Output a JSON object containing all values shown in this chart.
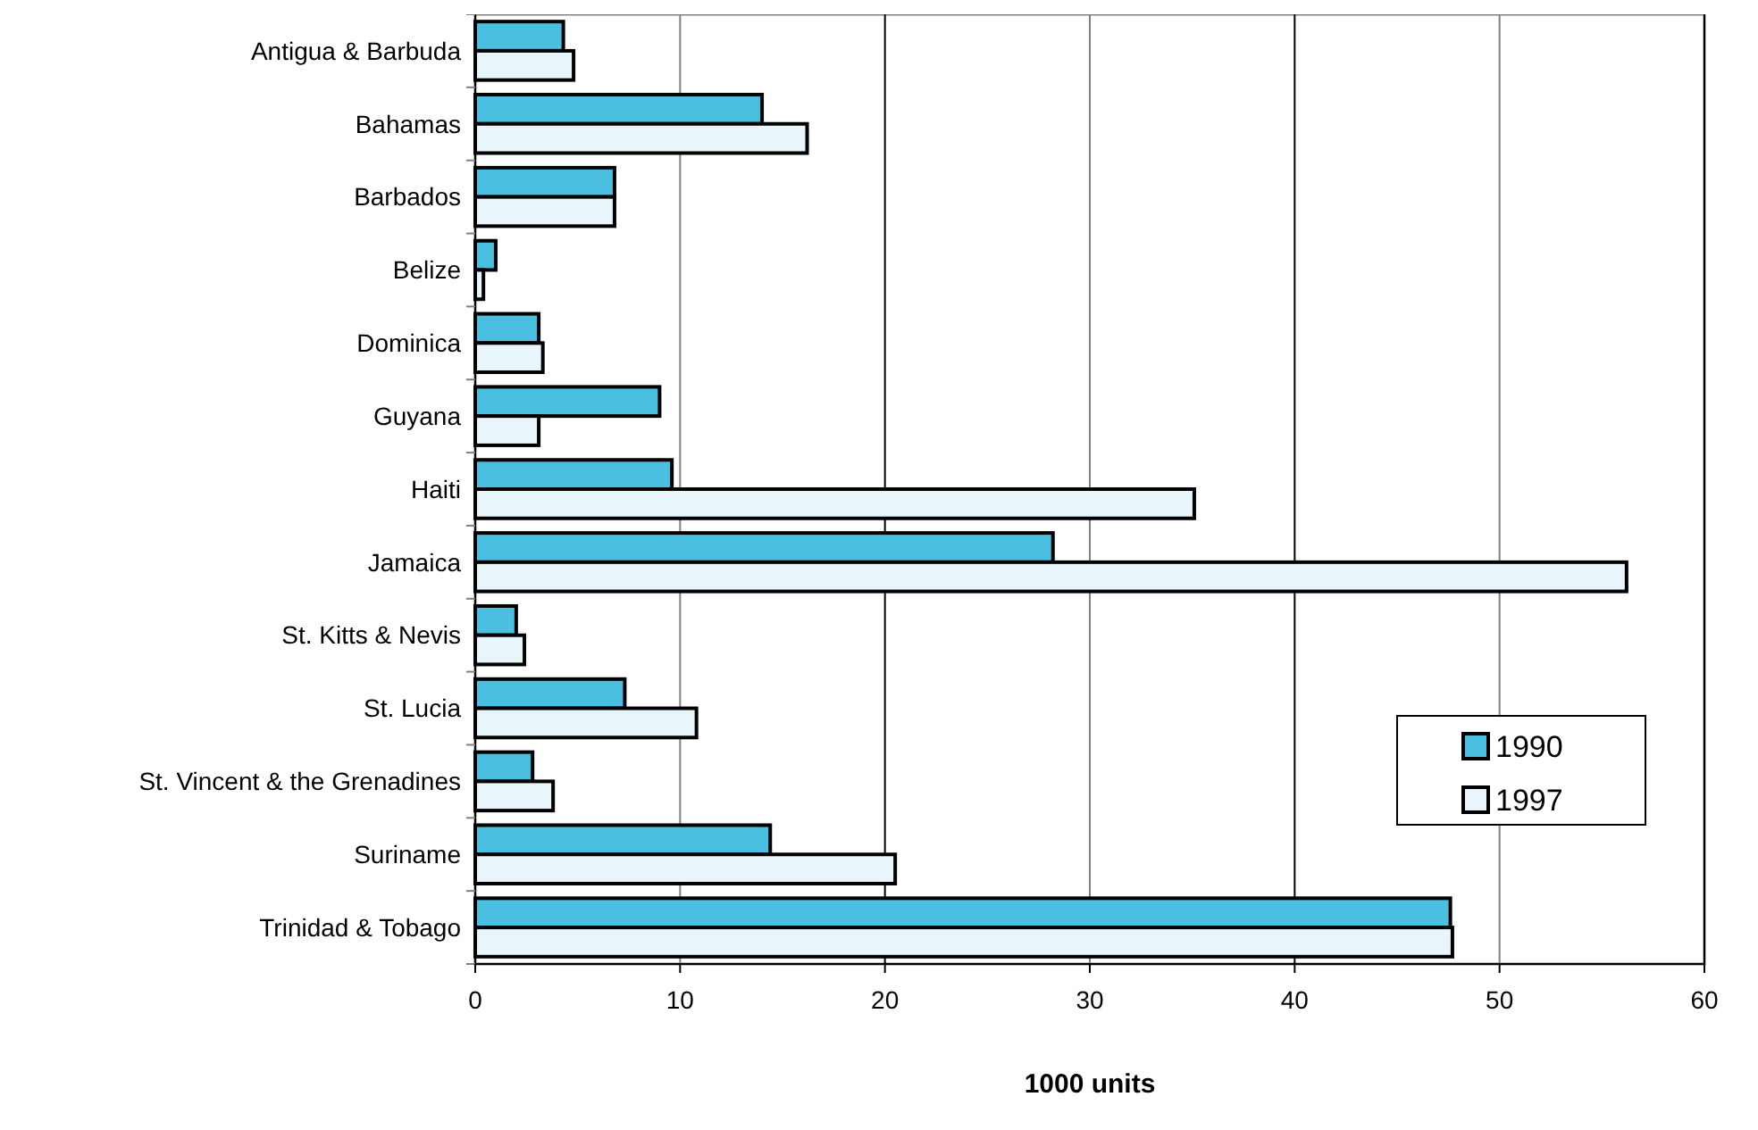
{
  "chart_data": {
    "type": "bar",
    "orientation": "horizontal",
    "xlabel": "1000 units",
    "categories": [
      "Antigua & Barbuda",
      "Bahamas",
      "Barbados",
      "Belize",
      "Dominica",
      "Guyana",
      "Haiti",
      "Jamaica",
      "St. Kitts & Nevis",
      "St. Lucia",
      "St. Vincent & the Grenadines",
      "Suriname",
      "Trinidad & Tobago"
    ],
    "series": [
      {
        "name": "1990",
        "color": "#4bbfdf",
        "values": [
          4.3,
          14.0,
          6.8,
          1.0,
          3.1,
          9.0,
          9.6,
          28.2,
          2.0,
          7.3,
          2.8,
          14.4,
          47.6
        ]
      },
      {
        "name": "1997",
        "color": "#e8f6fb",
        "values": [
          4.8,
          16.2,
          6.8,
          0.4,
          3.3,
          3.1,
          35.1,
          56.2,
          2.4,
          10.8,
          3.8,
          20.5,
          47.7
        ]
      }
    ],
    "xlim": [
      0,
      60
    ],
    "xticks": [
      0,
      10,
      20,
      30,
      40,
      50,
      60
    ],
    "grid": "x",
    "legend": "right"
  }
}
